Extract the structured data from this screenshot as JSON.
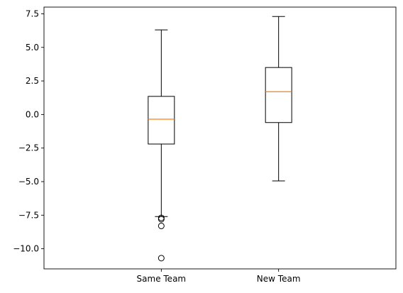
{
  "chart_data": {
    "type": "box",
    "title": "",
    "xlabel": "",
    "ylabel": "",
    "categories": [
      "Same Team",
      "New Team"
    ],
    "ylim": [
      -11.5,
      8.0
    ],
    "yticks": [
      7.5,
      5.0,
      2.5,
      0.0,
      -2.5,
      -5.0,
      -7.5,
      -10.0
    ],
    "ytick_labels": [
      "7.5",
      "5.0",
      "2.5",
      "0.0",
      "−2.5",
      "−5.0",
      "−7.5",
      "−10.0"
    ],
    "grid": false,
    "boxes": [
      {
        "category": "Same Team",
        "whisker_low": -7.6,
        "q1": -2.2,
        "median": -0.35,
        "q3": 1.35,
        "whisker_high": 6.3,
        "outliers": [
          -7.7,
          -7.8,
          -8.3,
          -10.7
        ]
      },
      {
        "category": "New Team",
        "whisker_low": -4.95,
        "q1": -0.6,
        "median": 1.7,
        "q3": 3.5,
        "whisker_high": 7.3,
        "outliers": []
      }
    ],
    "colors": {
      "median": "#ff7f0e",
      "box": "#000000",
      "axes": "#000000"
    }
  }
}
